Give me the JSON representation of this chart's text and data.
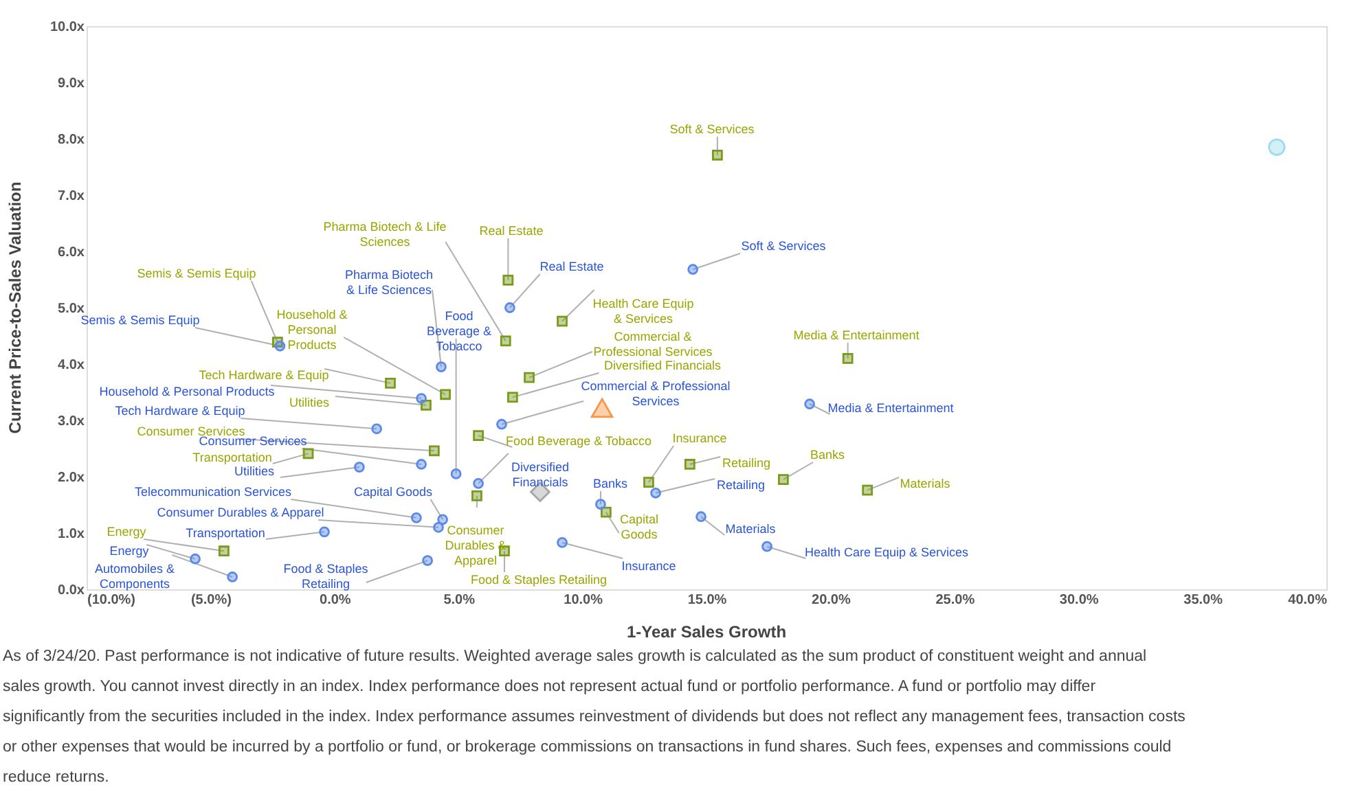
{
  "chart_data": {
    "type": "scatter",
    "xlabel": "1-Year Sales Growth",
    "ylabel": "Current Price-to-Sales  Valuation",
    "xlim": [
      -10,
      40
    ],
    "ylim": [
      0,
      10
    ],
    "xticks": [
      {
        "value": -10,
        "label": "(10.0%)"
      },
      {
        "value": -5,
        "label": "(5.0%)"
      },
      {
        "value": 0,
        "label": "0.0%"
      },
      {
        "value": 5,
        "label": "5.0%"
      },
      {
        "value": 10,
        "label": "10.0%"
      },
      {
        "value": 15,
        "label": "15.0%"
      },
      {
        "value": 20,
        "label": "20.0%"
      },
      {
        "value": 25,
        "label": "25.0%"
      },
      {
        "value": 30,
        "label": "30.0%"
      },
      {
        "value": 35,
        "label": "35.0%"
      },
      {
        "value": 40,
        "label": "40.0%"
      }
    ],
    "yticks": [
      {
        "value": 0,
        "label": "0.0x"
      },
      {
        "value": 1,
        "label": "1.0x"
      },
      {
        "value": 2,
        "label": "2.0x"
      },
      {
        "value": 3,
        "label": "3.0x"
      },
      {
        "value": 4,
        "label": "4.0x"
      },
      {
        "value": 5,
        "label": "5.0x"
      },
      {
        "value": 6,
        "label": "6.0x"
      },
      {
        "value": 7,
        "label": "7.0x"
      },
      {
        "value": 8,
        "label": "8.0x"
      },
      {
        "value": 9,
        "label": "9.0x"
      },
      {
        "value": 10,
        "label": "10.0x"
      }
    ],
    "grid": false,
    "series": [
      {
        "color": "#5b8ae6",
        "marker": "circle",
        "x": [
          -2.2,
          4.3,
          3.5,
          1.7,
          3.5,
          1.0,
          4.9,
          5.8,
          3.3,
          4.36,
          4.19,
          -0.41,
          -5.62,
          -4.12,
          3.75,
          14.45,
          7.07,
          6.74,
          19.16,
          10.73,
          12.95,
          14.78,
          17.44,
          9.18
        ],
        "values": [
          4.32,
          3.95,
          3.39,
          2.85,
          2.22,
          2.17,
          2.05,
          1.88,
          1.27,
          1.24,
          1.1,
          1.02,
          0.54,
          0.22,
          0.51,
          5.68,
          5.0,
          2.93,
          3.29,
          1.51,
          1.71,
          1.29,
          0.76,
          0.83
        ]
      },
      {
        "color": "#7a9a1e",
        "marker": "square",
        "x": [
          -2.3,
          2.25,
          4.47,
          3.69,
          4.02,
          -1.06,
          -4.46,
          5.8,
          6.9,
          7.0,
          15.44,
          9.18,
          7.85,
          7.18,
          20.7,
          12.67,
          14.33,
          18.1,
          21.49,
          10.95,
          5.74,
          6.85
        ],
        "values": [
          4.39,
          3.66,
          3.46,
          3.27,
          2.46,
          2.41,
          0.68,
          2.73,
          4.41,
          5.49,
          7.71,
          4.76,
          3.76,
          3.41,
          4.1,
          1.9,
          2.22,
          1.95,
          1.76,
          1.37,
          1.66,
          0.68
        ]
      },
      {
        "color": "#f79646",
        "marker": "triangle",
        "x": [
          10.79
        ],
        "values": [
          3.22
        ]
      },
      {
        "color": "#a6a6a6",
        "marker": "diamond",
        "x": [
          8.29
        ],
        "values": [
          1.73
        ]
      },
      {
        "color": "#9fdcec",
        "marker": "circle",
        "x": [
          38.0
        ],
        "values": [
          7.85
        ]
      }
    ],
    "annotations": [
      {
        "text": "Semis & Semis Equip",
        "x": -2.2,
        "y": 4.32
      },
      {
        "text": "Pharma Biotech & Life Sciences",
        "x": 4.3,
        "y": 3.95
      },
      {
        "text": "Household & Personal Products",
        "x": 3.5,
        "y": 3.39
      },
      {
        "text": "Tech Hardware & Equip",
        "x": 1.7,
        "y": 2.85
      },
      {
        "text": "Consumer Services",
        "x": 3.5,
        "y": 2.22
      },
      {
        "text": "Utilities",
        "x": 1.0,
        "y": 2.17
      },
      {
        "text": "Food Beverage & Tobacco",
        "x": 4.9,
        "y": 2.05
      },
      {
        "text": "Diversified Financials",
        "x": 5.8,
        "y": 1.88
      },
      {
        "text": "Telecommunication  Services",
        "x": 3.3,
        "y": 1.27
      },
      {
        "text": "Capital Goods",
        "x": 4.36,
        "y": 1.24
      },
      {
        "text": "Consumer Durables & Apparel",
        "x": 4.19,
        "y": 1.1
      },
      {
        "text": "Transportation",
        "x": -0.41,
        "y": 1.02
      },
      {
        "text": "Energy",
        "x": -5.62,
        "y": 0.54
      },
      {
        "text": "Automobiles & Components",
        "x": -4.12,
        "y": 0.22
      },
      {
        "text": "Food & Staples Retailing",
        "x": 3.75,
        "y": 0.51
      },
      {
        "text": "Soft & Services",
        "x": 14.45,
        "y": 5.68
      },
      {
        "text": "Real Estate",
        "x": 7.07,
        "y": 5.0
      },
      {
        "text": "Commercial & Professional Services",
        "x": 6.74,
        "y": 2.93
      },
      {
        "text": "Media & Entertainment",
        "x": 19.16,
        "y": 3.29
      },
      {
        "text": "Banks",
        "x": 10.73,
        "y": 1.51
      },
      {
        "text": "Retailing",
        "x": 12.95,
        "y": 1.71
      },
      {
        "text": "Materials",
        "x": 14.78,
        "y": 1.29
      },
      {
        "text": "Health Care Equip & Services",
        "x": 17.44,
        "y": 0.76
      },
      {
        "text": "Insurance",
        "x": 9.18,
        "y": 0.83
      },
      {
        "text": "Semis & Semis Equip",
        "x": -2.3,
        "y": 4.39
      },
      {
        "text": "Tech Hardware & Equip",
        "x": 2.25,
        "y": 3.66
      },
      {
        "text": "Household & Personal Products",
        "x": 4.47,
        "y": 3.46
      },
      {
        "text": "Utilities",
        "x": 3.69,
        "y": 3.27
      },
      {
        "text": "Consumer Services",
        "x": 4.02,
        "y": 2.46
      },
      {
        "text": "Transportation",
        "x": -1.06,
        "y": 2.41
      },
      {
        "text": "Energy",
        "x": -4.46,
        "y": 0.68
      },
      {
        "text": "Food Beverage & Tobacco",
        "x": 5.8,
        "y": 2.73
      },
      {
        "text": "Pharma Biotech & Life Sciences",
        "x": 6.9,
        "y": 4.41
      },
      {
        "text": "Real Estate",
        "x": 7.0,
        "y": 5.49
      },
      {
        "text": "Soft & Services",
        "x": 15.44,
        "y": 7.71
      },
      {
        "text": "Health Care Equip & Services",
        "x": 9.18,
        "y": 4.76
      },
      {
        "text": "Commercial & Professional Services",
        "x": 7.85,
        "y": 3.76
      },
      {
        "text": "Diversified Financials",
        "x": 7.18,
        "y": 3.41
      },
      {
        "text": "Media & Entertainment",
        "x": 20.7,
        "y": 4.1
      },
      {
        "text": "Insurance",
        "x": 12.67,
        "y": 1.9
      },
      {
        "text": "Retailing",
        "x": 14.33,
        "y": 2.22
      },
      {
        "text": "Banks",
        "x": 18.1,
        "y": 1.95
      },
      {
        "text": "Materials",
        "x": 21.49,
        "y": 1.76
      },
      {
        "text": "Capital Goods",
        "x": 10.95,
        "y": 1.37
      },
      {
        "text": "Consumer Durables & Apparel",
        "x": 5.74,
        "y": 1.66
      },
      {
        "text": "Food & Staples Retailing",
        "x": 6.85,
        "y": 0.68
      },
      "As of 3/24/20. Past performance is not indicative of future results. Weighted average sales growth is calculated as the sum product of constituent weight and annual sales growth. You cannot invest directly in an index. Index performance does not represent actual fund or portfolio performance. A fund or portfolio may differ significantly from the securities included in the index. Index performance assumes reinvestment of dividends but does not reflect any management fees, transaction costs or other expenses that would be incurred by a portfolio or fund, or brokerage commissions on transactions in fund shares. Such fees, expenses and commissions could reduce returns."
    ]
  }
}
